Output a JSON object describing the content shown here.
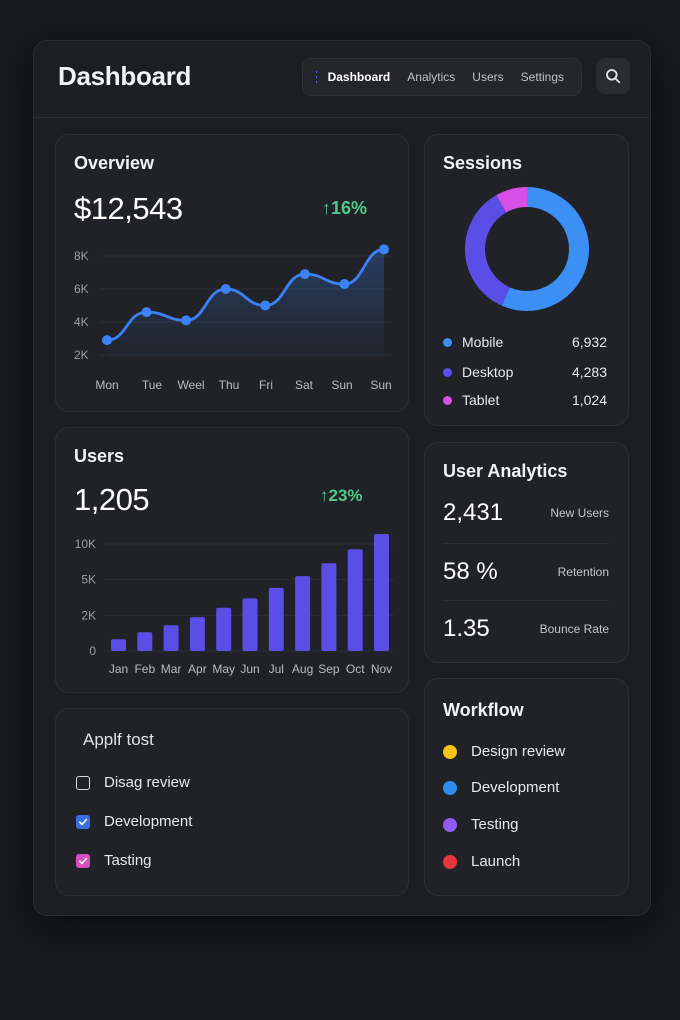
{
  "header": {
    "title": "Dashboard",
    "nav": [
      "Dashboard",
      "Analytics",
      "Users",
      "Settings"
    ],
    "active_nav": "Dashboard"
  },
  "overview": {
    "title": "Overview",
    "value": "$12,543",
    "change": "16%",
    "chart_data": {
      "type": "line",
      "categories": [
        "Mon",
        "Tue",
        "Weel",
        "Thu",
        "Fri",
        "Sat",
        "Sun",
        "Sun"
      ],
      "values": [
        2.9,
        4.6,
        4.1,
        6.0,
        5.0,
        6.9,
        6.3,
        8.4
      ],
      "yticks": [
        "8K",
        "6K",
        "4K",
        "2K"
      ],
      "ylim": [
        2,
        8
      ],
      "grid": true,
      "color": "#3b82f6"
    }
  },
  "sessions": {
    "title": "Sessions",
    "chart_data": {
      "type": "pie",
      "donut": true,
      "categories": [
        "Mobile",
        "Desktop",
        "Tablet"
      ],
      "values": [
        6932,
        4283,
        1024
      ],
      "colors": [
        "#3b8ff5",
        "#5b4ee6",
        "#d64fe6"
      ],
      "display_values": [
        "6,932",
        "4,283",
        "1,024"
      ]
    }
  },
  "users": {
    "title": "Users",
    "value": "1,205",
    "change": "23%",
    "chart_data": {
      "type": "bar",
      "categories": [
        "Jan",
        "Feb",
        "Mar",
        "Apr",
        "May",
        "Jun",
        "Jul",
        "Aug",
        "Sep",
        "Oct",
        "Nov"
      ],
      "values": [
        1000,
        1600,
        2200,
        2900,
        3700,
        4500,
        5400,
        6400,
        7500,
        8700,
        10000
      ],
      "yticks": [
        "10K",
        "5K",
        "2K",
        "0"
      ],
      "grid": true,
      "color": "#5b4ee6"
    }
  },
  "user_analytics": {
    "title": "User Analytics",
    "rows": [
      {
        "value": "2,431",
        "label": "New Users"
      },
      {
        "value": "58 %",
        "label": "Retention"
      },
      {
        "value": "1.35",
        "label": "Bounce Rate"
      }
    ]
  },
  "tasks": {
    "title": "Applf tost",
    "items": [
      {
        "label": "Disag review",
        "checked": false,
        "color": ""
      },
      {
        "label": "Development",
        "checked": true,
        "color": "#3b6fe0"
      },
      {
        "label": "Tasting",
        "checked": true,
        "color": "#d64fc2"
      }
    ]
  },
  "workflow": {
    "title": "Workflow",
    "items": [
      {
        "label": "Design review",
        "color": "#f5c518"
      },
      {
        "label": "Development",
        "color": "#2f8cf0"
      },
      {
        "label": "Testing",
        "color": "#8e5cf0"
      },
      {
        "label": "Launch",
        "color": "#e5343d"
      }
    ]
  }
}
